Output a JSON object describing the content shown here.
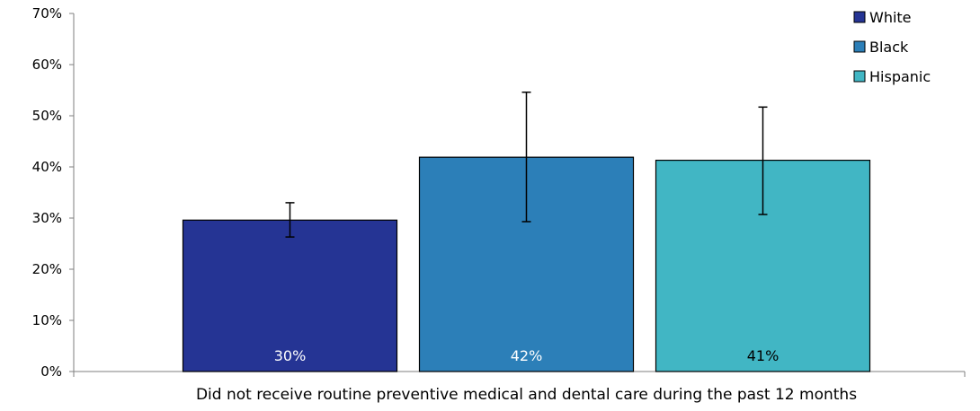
{
  "chart_data": {
    "type": "bar",
    "title": "",
    "xlabel": "",
    "ylabel": "",
    "categories": [
      "Did not receive routine preventive medical and dental care during the past 12 months"
    ],
    "ylim": [
      0,
      70
    ],
    "yticks": [
      0,
      10,
      20,
      30,
      40,
      50,
      60,
      70
    ],
    "ytick_labels": [
      "0%",
      "10%",
      "20%",
      "30%",
      "40%",
      "50%",
      "60%",
      "70%"
    ],
    "grid": false,
    "legend_position": "top-right",
    "series": [
      {
        "name": "White",
        "color": "#253494",
        "values": [
          29.6
        ],
        "error_low": [
          26.3
        ],
        "error_high": [
          33.0
        ],
        "label": "30%",
        "label_color": "#ffffff"
      },
      {
        "name": "Black",
        "color": "#2c7fb8",
        "values": [
          41.9
        ],
        "error_low": [
          29.3
        ],
        "error_high": [
          54.6
        ],
        "label": "42%",
        "label_color": "#ffffff"
      },
      {
        "name": "Hispanic",
        "color": "#41b6c4",
        "values": [
          41.3
        ],
        "error_low": [
          30.7
        ],
        "error_high": [
          51.7
        ],
        "label": "41%",
        "label_color": "#000000"
      }
    ]
  }
}
